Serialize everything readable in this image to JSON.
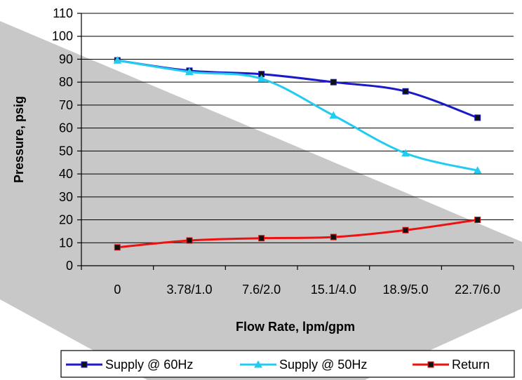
{
  "chart_data": {
    "type": "line",
    "title": "",
    "xlabel": "Flow Rate, lpm/gpm",
    "ylabel": "Pressure, psig",
    "categories": [
      "0",
      "3.78/1.0",
      "7.6/2.0",
      "15.1/4.0",
      "18.9/5.0",
      "22.7/6.0"
    ],
    "ylim": [
      0,
      110
    ],
    "yticks": [
      0,
      10,
      20,
      30,
      40,
      50,
      60,
      70,
      80,
      90,
      100,
      110
    ],
    "grid": true,
    "legend": "bottom",
    "series": [
      {
        "name": "Supply @ 60Hz",
        "color": "#1a1acc",
        "marker": "square",
        "values": [
          89.5,
          85,
          83.5,
          80,
          76,
          64.5
        ]
      },
      {
        "name": "Supply @ 50Hz",
        "color": "#22ccf0",
        "marker": "triangle",
        "values": [
          89.5,
          84.5,
          81.5,
          65.5,
          49,
          41.5
        ]
      },
      {
        "name": "Return",
        "color": "#ee1111",
        "marker": "square",
        "values": [
          8,
          11,
          12,
          12.5,
          15.5,
          20
        ]
      }
    ]
  }
}
